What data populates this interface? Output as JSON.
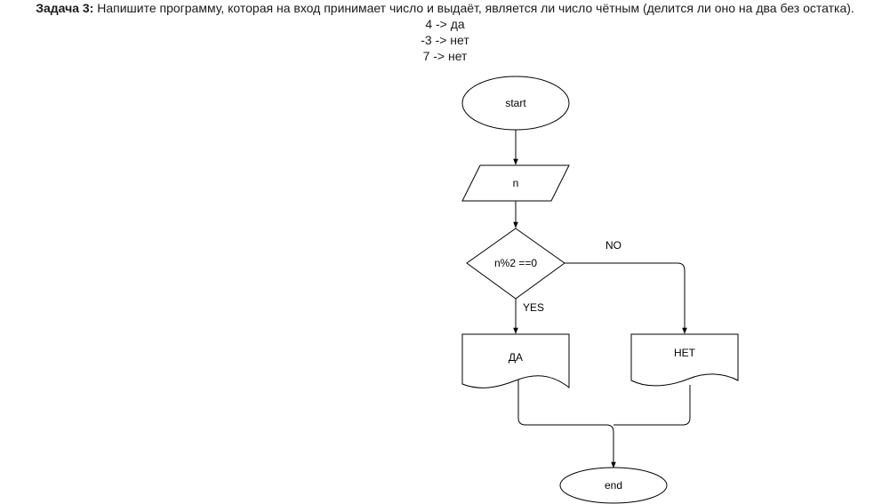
{
  "task": {
    "label": "Задача 3:",
    "text": " Напишите программу, которая на вход принимает число и выдаёт, является ли число чётным (делится ли оно на два без остатка).",
    "examples": [
      "4 -> да",
      "-3 -> нет",
      "7 -> нет"
    ]
  },
  "flowchart": {
    "start": "start",
    "input": "n",
    "condition": "n%2 ==0",
    "yes_label": "YES",
    "no_label": "NO",
    "output_yes": "ДА",
    "output_no": "НЕТ",
    "end": "end"
  }
}
